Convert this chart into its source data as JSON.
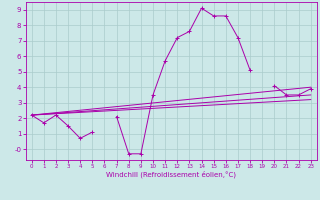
{
  "xlabel": "Windchill (Refroidissement éolien,°C)",
  "background_color": "#cce8e8",
  "grid_color": "#aacccc",
  "line_color": "#aa00aa",
  "x_values": [
    0,
    1,
    2,
    3,
    4,
    5,
    6,
    7,
    8,
    9,
    10,
    11,
    12,
    13,
    14,
    15,
    16,
    17,
    18,
    19,
    20,
    21,
    22,
    23
  ],
  "series1": [
    2.2,
    1.7,
    2.2,
    1.5,
    0.7,
    1.1,
    null,
    2.1,
    -0.3,
    -0.3,
    3.5,
    5.7,
    7.2,
    7.6,
    9.1,
    8.6,
    8.6,
    7.2,
    5.1,
    null,
    4.1,
    3.5,
    3.5,
    3.9
  ],
  "series2_x": [
    0,
    23
  ],
  "series2_y": [
    2.2,
    4.0
  ],
  "series3_x": [
    0,
    23
  ],
  "series3_y": [
    2.2,
    3.5
  ],
  "series4_x": [
    0,
    23
  ],
  "series4_y": [
    2.2,
    3.2
  ],
  "ylim": [
    -0.7,
    9.5
  ],
  "xlim": [
    -0.5,
    23.5
  ],
  "yticks": [
    0,
    1,
    2,
    3,
    4,
    5,
    6,
    7,
    8,
    9
  ],
  "ytick_labels": [
    "-0",
    "1",
    "2",
    "3",
    "4",
    "5",
    "6",
    "7",
    "8",
    "9"
  ],
  "xticks": [
    0,
    1,
    2,
    3,
    4,
    5,
    6,
    7,
    8,
    9,
    10,
    11,
    12,
    13,
    14,
    15,
    16,
    17,
    18,
    19,
    20,
    21,
    22,
    23
  ]
}
